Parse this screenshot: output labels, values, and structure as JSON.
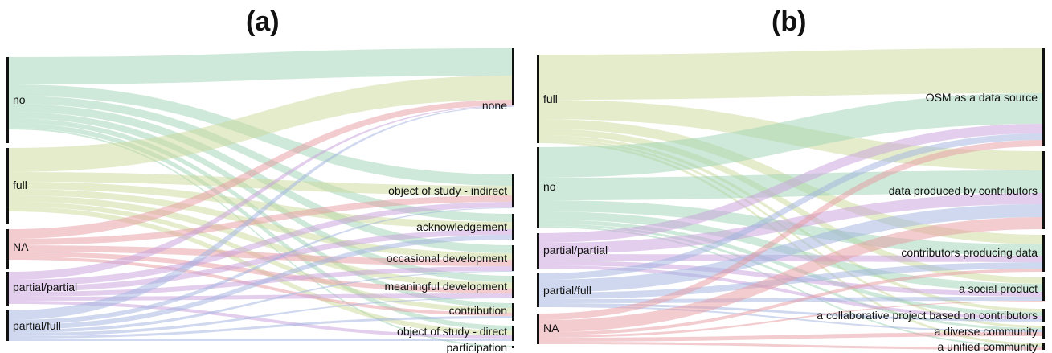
{
  "panels": [
    {
      "title": "(a)",
      "left_nodes": [
        {
          "label": "no",
          "color": "#9ed3b4"
        },
        {
          "label": "full",
          "color": "#c9d99a"
        },
        {
          "label": "NA",
          "color": "#e89aa1"
        },
        {
          "label": "partial/partial",
          "color": "#c79fdc"
        },
        {
          "label": "partial/full",
          "color": "#9fb2e0"
        }
      ],
      "right_nodes": [
        {
          "label": "none"
        },
        {
          "label": "object of study - indirect"
        },
        {
          "label": "acknowledgement"
        },
        {
          "label": "occasional development"
        },
        {
          "label": "meaningful development"
        },
        {
          "label": "contribution"
        },
        {
          "label": "object of study - direct"
        },
        {
          "label": "participation"
        }
      ]
    },
    {
      "title": "(b)",
      "left_nodes": [
        {
          "label": "full",
          "color": "#c9d99a"
        },
        {
          "label": "no",
          "color": "#9ed3b4"
        },
        {
          "label": "partial/partial",
          "color": "#c79fdc"
        },
        {
          "label": "partial/full",
          "color": "#9fb2e0"
        },
        {
          "label": "NA",
          "color": "#e89aa1"
        }
      ],
      "right_nodes": [
        {
          "label": "OSM as a data source"
        },
        {
          "label": "data produced by contributors"
        },
        {
          "label": "contributors producing data"
        },
        {
          "label": "a social product"
        },
        {
          "label": "a collaborative project based on contributors"
        },
        {
          "label": "a diverse community"
        },
        {
          "label": "a unified community"
        }
      ]
    }
  ]
}
